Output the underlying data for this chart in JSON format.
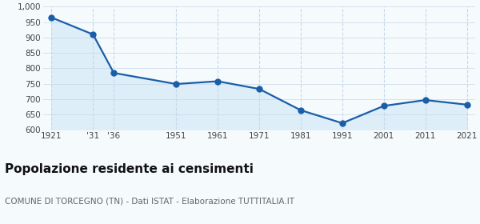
{
  "years": [
    1921,
    1931,
    1936,
    1951,
    1961,
    1971,
    1981,
    1991,
    2001,
    2011,
    2021
  ],
  "x_labels": [
    "1921",
    "'31",
    "'36",
    "1951",
    "1961",
    "1971",
    "1981",
    "1991",
    "2001",
    "2011",
    "2021"
  ],
  "population": [
    965,
    910,
    785,
    749,
    758,
    733,
    664,
    622,
    678,
    697,
    682
  ],
  "line_color": "#1a5ea8",
  "fill_color": "#ddeef8",
  "background_color": "#f5fafd",
  "grid_color": "#c8d8e8",
  "ylim": [
    600,
    1000
  ],
  "ytick_values": [
    600,
    650,
    700,
    750,
    800,
    850,
    900,
    950,
    1000
  ],
  "title_bold": "Popolazione residente ai censimenti",
  "subtitle": "COMUNE DI TORCEGNO (TN) - Dati ISTAT - Elaborazione TUTTITALIA.IT",
  "title_fontsize": 11,
  "subtitle_fontsize": 7.5,
  "marker_size": 5
}
